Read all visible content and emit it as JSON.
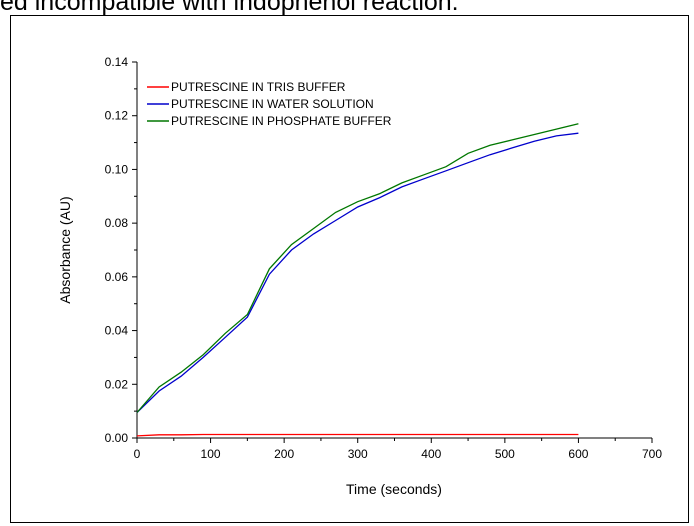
{
  "page": {
    "caption": "ed incompatible with indophenol reaction."
  },
  "chart_data": {
    "type": "line",
    "title": "",
    "xlabel": "Time (seconds)",
    "ylabel": "Absorbance (AU)",
    "xlim": [
      0,
      700
    ],
    "ylim": [
      0,
      0.14
    ],
    "x_ticks": [
      "0",
      "100",
      "200",
      "300",
      "400",
      "500",
      "600",
      "700"
    ],
    "y_ticks": [
      "0.00",
      "0.02",
      "0.04",
      "0.06",
      "0.08",
      "0.10",
      "0.12",
      "0.14"
    ],
    "grid": false,
    "legend_position": "top-left",
    "series": [
      {
        "name": "PUTRESCINE IN TRIS BUFFER",
        "color": "#ff0000",
        "x": [
          0,
          30,
          60,
          90,
          120,
          150,
          180,
          210,
          240,
          270,
          300,
          330,
          360,
          390,
          420,
          450,
          480,
          510,
          540,
          570,
          600
        ],
        "y": [
          0.0008,
          0.0012,
          0.0012,
          0.0013,
          0.0013,
          0.0013,
          0.0013,
          0.0013,
          0.0013,
          0.0013,
          0.0013,
          0.0013,
          0.0013,
          0.0013,
          0.0013,
          0.0013,
          0.0013,
          0.0013,
          0.0013,
          0.0013,
          0.0013
        ]
      },
      {
        "name": "PUTRESCINE IN WATER SOLUTION",
        "color": "#0000cc",
        "x": [
          0,
          30,
          60,
          90,
          120,
          150,
          180,
          210,
          240,
          270,
          300,
          330,
          360,
          390,
          420,
          450,
          480,
          510,
          540,
          570,
          600
        ],
        "y": [
          0.0095,
          0.0175,
          0.023,
          0.03,
          0.0375,
          0.045,
          0.061,
          0.07,
          0.076,
          0.081,
          0.086,
          0.0895,
          0.0935,
          0.0965,
          0.0995,
          0.1025,
          0.1055,
          0.108,
          0.1105,
          0.1125,
          0.1135
        ]
      },
      {
        "name": "PUTRESCINE IN PHOSPHATE BUFFER",
        "color": "#007700",
        "x": [
          0,
          30,
          60,
          90,
          120,
          150,
          180,
          210,
          240,
          270,
          300,
          330,
          360,
          390,
          420,
          450,
          480,
          510,
          540,
          570,
          600
        ],
        "y": [
          0.0095,
          0.019,
          0.0245,
          0.031,
          0.039,
          0.046,
          0.063,
          0.072,
          0.078,
          0.084,
          0.088,
          0.091,
          0.095,
          0.098,
          0.101,
          0.106,
          0.109,
          0.111,
          0.113,
          0.115,
          0.117
        ]
      }
    ]
  }
}
